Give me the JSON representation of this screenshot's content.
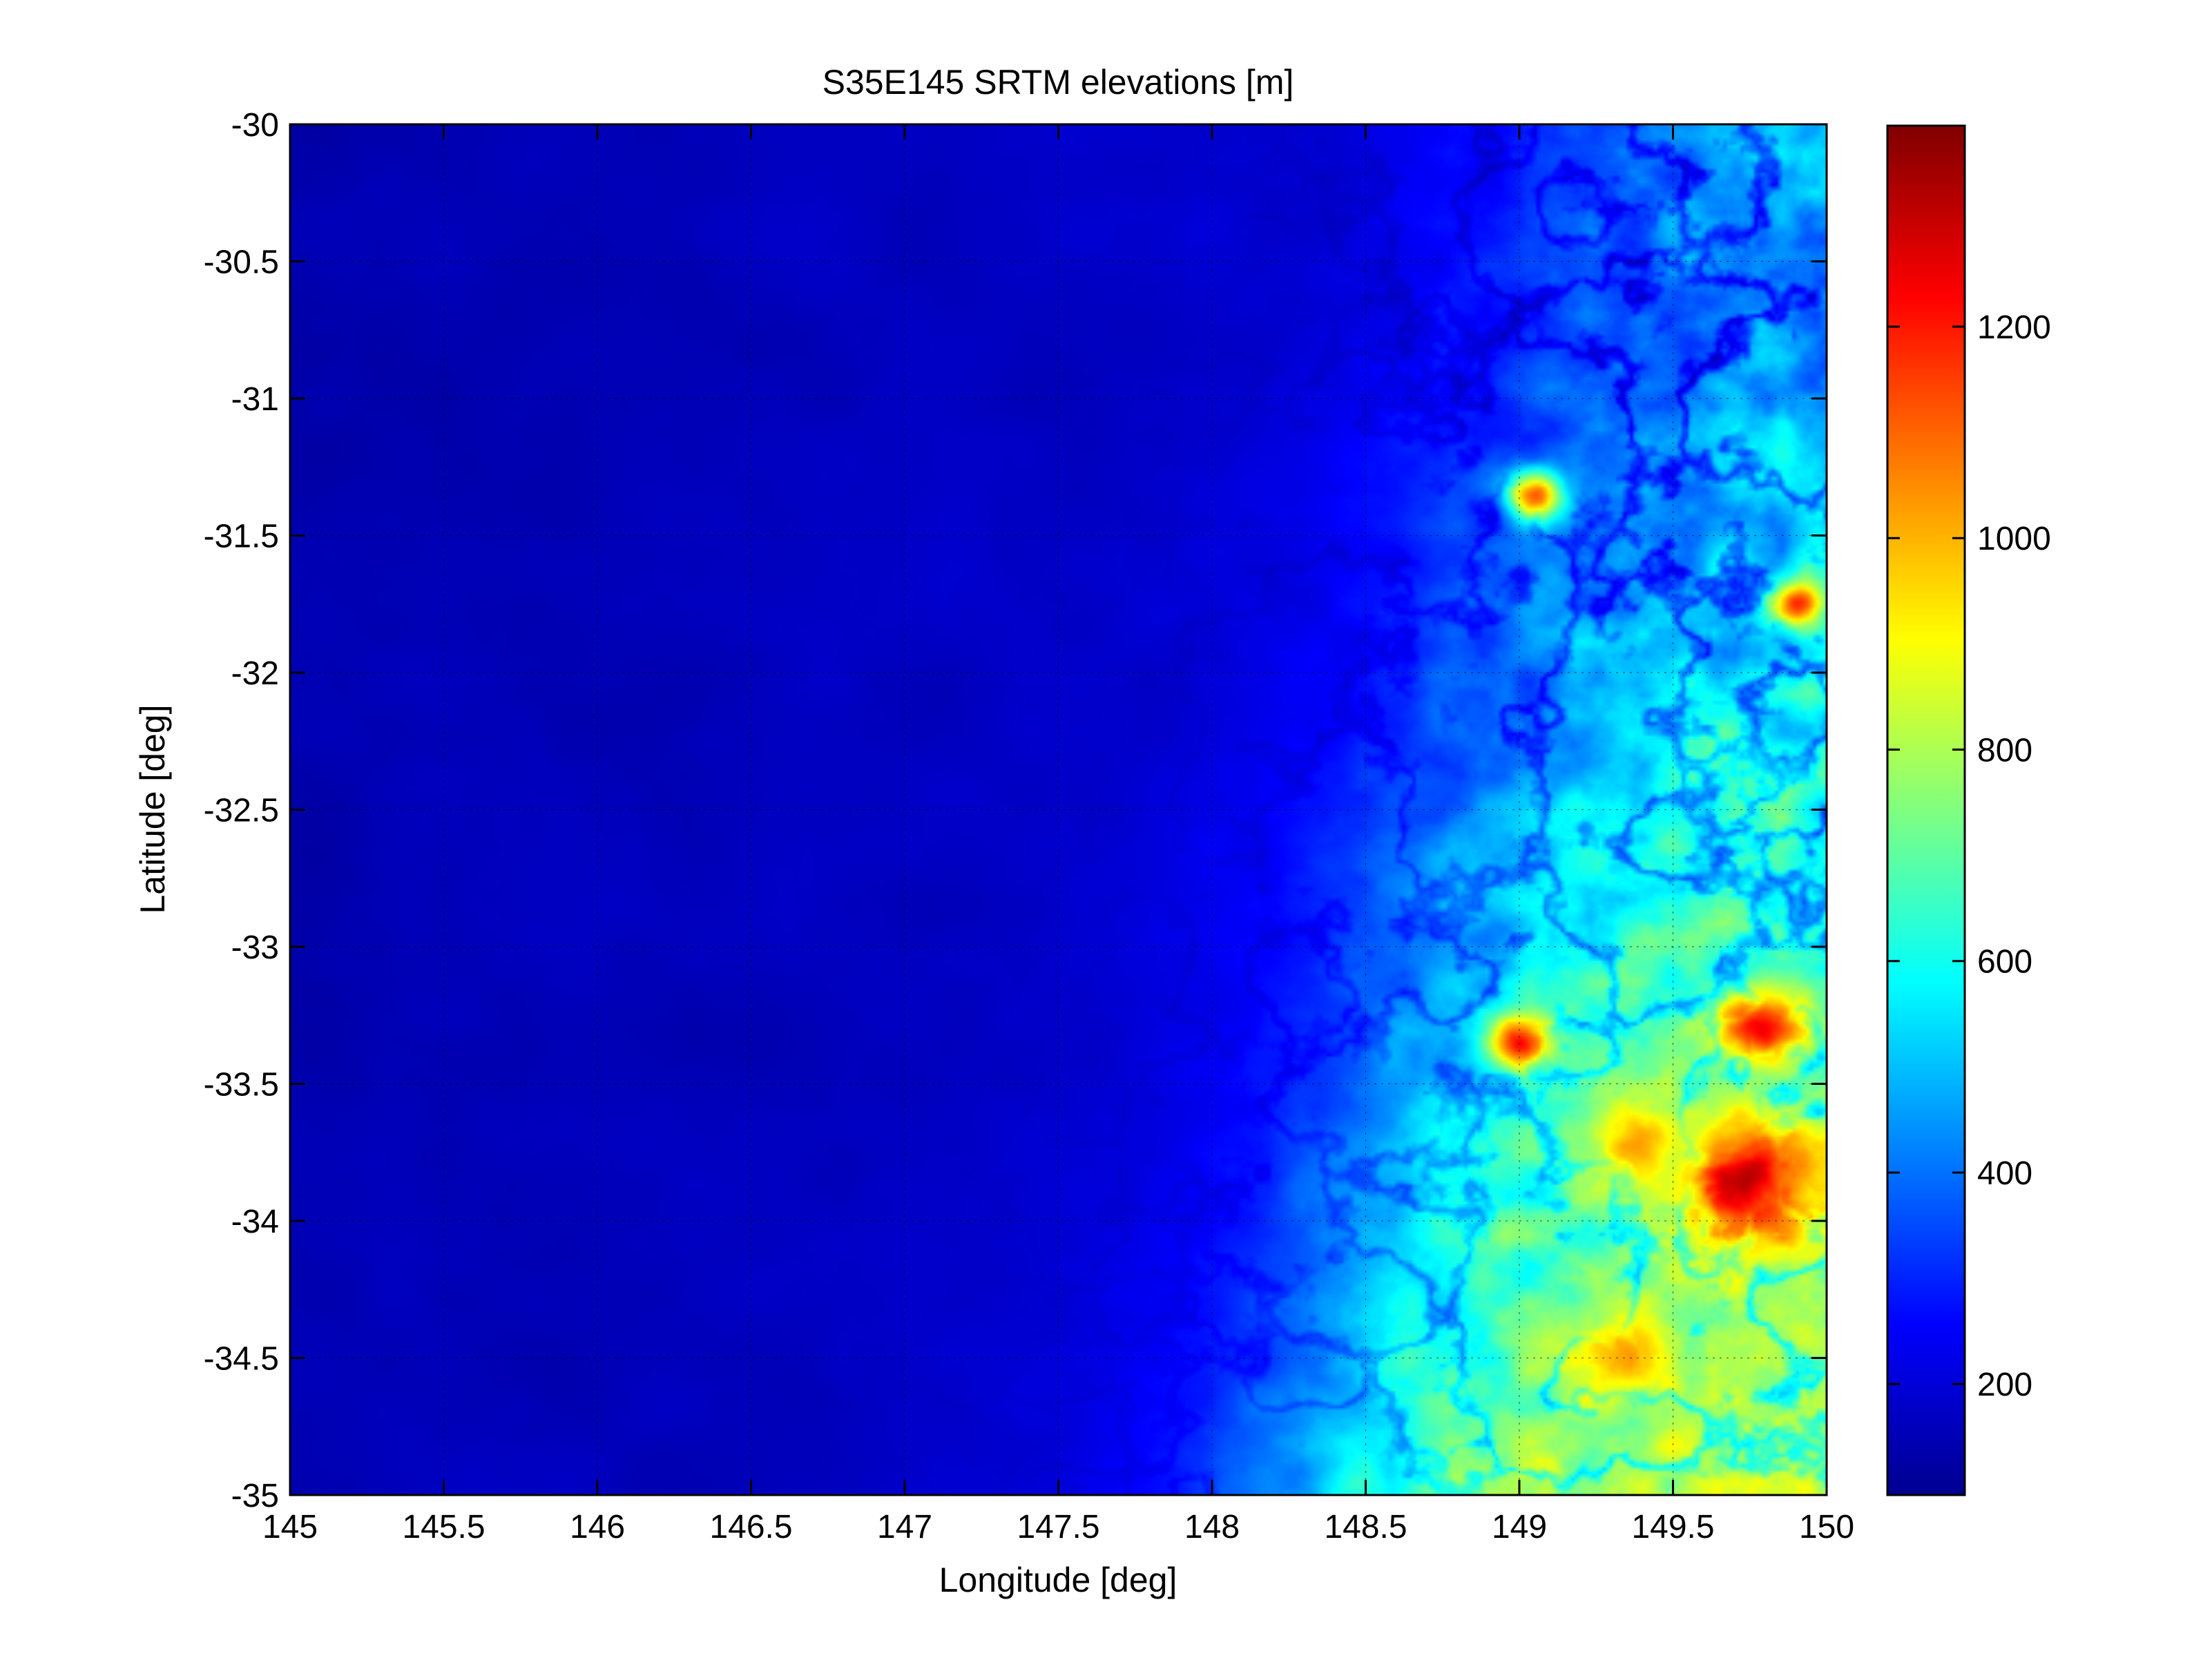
{
  "chart_data": {
    "type": "heatmap",
    "title": "S35E145 SRTM elevations [m]",
    "xlabel": "Longitude [deg]",
    "ylabel": "Latitude [deg]",
    "xlim": [
      145,
      150
    ],
    "ylim": [
      -35,
      -30
    ],
    "x_ticks": [
      145,
      145.5,
      146,
      146.5,
      147,
      147.5,
      148,
      148.5,
      149,
      149.5,
      150
    ],
    "y_ticks": [
      -30,
      -30.5,
      -31,
      -31.5,
      -32,
      -32.5,
      -33,
      -33.5,
      -34,
      -34.5,
      -35
    ],
    "x_tick_labels": [
      "145",
      "145.5",
      "146",
      "146.5",
      "147",
      "147.5",
      "148",
      "148.5",
      "149",
      "149.5",
      "150"
    ],
    "y_tick_labels": [
      "-30",
      "-30.5",
      "-31",
      "-31.5",
      "-32",
      "-32.5",
      "-33",
      "-33.5",
      "-34",
      "-34.5",
      "-35"
    ],
    "grid": true,
    "colormap": "jet",
    "colorbar": {
      "range": [
        95,
        1390
      ],
      "ticks": [
        200,
        400,
        600,
        800,
        1000,
        1200
      ],
      "tick_labels": [
        "200",
        "400",
        "600",
        "800",
        "1000",
        "1200"
      ]
    },
    "features": [
      {
        "lon": 149.05,
        "lat": -31.35,
        "elev": 1150,
        "size": 0.09
      },
      {
        "lon": 149.9,
        "lat": -31.75,
        "elev": 1150,
        "size": 0.08
      },
      {
        "lon": 149.0,
        "lat": -33.35,
        "elev": 1200,
        "size": 0.1
      },
      {
        "lon": 149.8,
        "lat": -33.3,
        "elev": 1250,
        "size": 0.14
      },
      {
        "lon": 149.75,
        "lat": -33.85,
        "elev": 1300,
        "size": 0.22
      },
      {
        "lon": 149.35,
        "lat": -34.5,
        "elev": 1000,
        "size": 0.15
      },
      {
        "lon": 149.4,
        "lat": -33.7,
        "elev": 1000,
        "size": 0.18
      }
    ]
  }
}
